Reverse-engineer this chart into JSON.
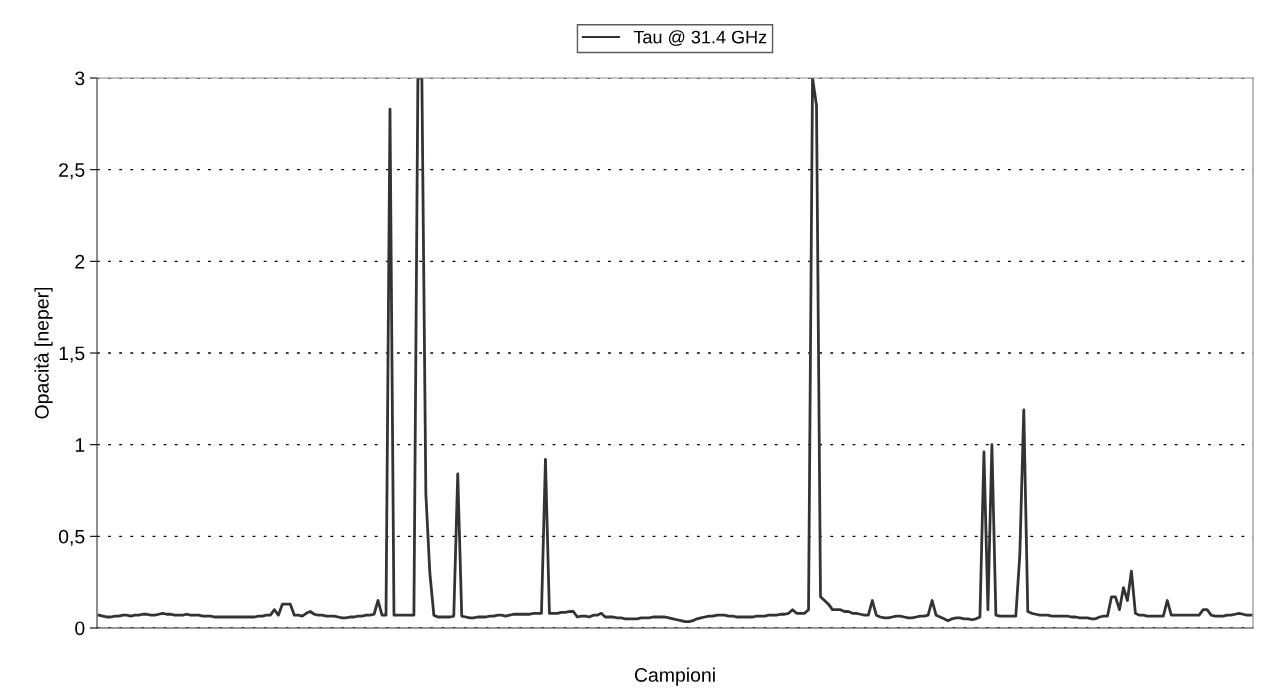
{
  "chart_data": {
    "type": "line",
    "xlabel": "Campioni",
    "ylabel": "Opacità [neper]",
    "categories": [
      null,
      null,
      null,
      null,
      null,
      null,
      null,
      null,
      null,
      null,
      null,
      null,
      null,
      null,
      null,
      null,
      null,
      null,
      null,
      null,
      null,
      null,
      null,
      null,
      null,
      null,
      null,
      null,
      null,
      null,
      null,
      null,
      null,
      null,
      null,
      null,
      null,
      null,
      null,
      null,
      null,
      null,
      null,
      null,
      null,
      null,
      null,
      null,
      null,
      null,
      null,
      null,
      null,
      null,
      null,
      null,
      null,
      null,
      null,
      null,
      null,
      null,
      null,
      null,
      null,
      null,
      null,
      null,
      null,
      null,
      null,
      null,
      null,
      null,
      null,
      null,
      null,
      null,
      null,
      null,
      null,
      null,
      null,
      null,
      null,
      null,
      null,
      null,
      null,
      null,
      null,
      null,
      null,
      null,
      null,
      null,
      null,
      null,
      null,
      null,
      null,
      null,
      null,
      null,
      null,
      null,
      null,
      null,
      null,
      null,
      null,
      null,
      null,
      null,
      null,
      null,
      null,
      null,
      null,
      null,
      null,
      null,
      null,
      null,
      null,
      null,
      null,
      null,
      null,
      null,
      null,
      null,
      null,
      null,
      null,
      null,
      null,
      null,
      null,
      null,
      null,
      null,
      null,
      null,
      null,
      null,
      null,
      null,
      null,
      null,
      null,
      null,
      null,
      null,
      null,
      null,
      null,
      null,
      null,
      null,
      null,
      null,
      null,
      null,
      null,
      null,
      null,
      null,
      null,
      null,
      null,
      null,
      null,
      null,
      null,
      null,
      null,
      null,
      null,
      null,
      null,
      null,
      null,
      null,
      null,
      null,
      null,
      null,
      null,
      null,
      null,
      null,
      null,
      null,
      null,
      null,
      null,
      null,
      null,
      null,
      null,
      null,
      null,
      null,
      null,
      null,
      null,
      null,
      null,
      null,
      null,
      null,
      null,
      null,
      null,
      null,
      null,
      null,
      null,
      null,
      null,
      null,
      null,
      null,
      null,
      null,
      null,
      null,
      null,
      null,
      null,
      null,
      null,
      null,
      null,
      null,
      null,
      null,
      null,
      null,
      null,
      null,
      null,
      null,
      null,
      null,
      null,
      null,
      null,
      null,
      null,
      null,
      null,
      null,
      null,
      null,
      null,
      null,
      null,
      null,
      null,
      null,
      null,
      null,
      null,
      null,
      null,
      null,
      null,
      null,
      null,
      null,
      null,
      null,
      null,
      null,
      null,
      null,
      null,
      null,
      null,
      null,
      null,
      null,
      null,
      null,
      null,
      null,
      null,
      null
    ],
    "series": [
      {
        "name": "Tau @ 31.4 GHz",
        "color": "#333333",
        "values": [
          0.07,
          0.065,
          0.06,
          0.06,
          0.065,
          0.065,
          0.07,
          0.07,
          0.065,
          0.07,
          0.07,
          0.075,
          0.075,
          0.07,
          0.07,
          0.075,
          0.08,
          0.075,
          0.075,
          0.07,
          0.07,
          0.07,
          0.075,
          0.07,
          0.07,
          0.07,
          0.065,
          0.065,
          0.065,
          0.06,
          0.06,
          0.06,
          0.06,
          0.06,
          0.06,
          0.06,
          0.06,
          0.06,
          0.06,
          0.06,
          0.065,
          0.065,
          0.07,
          0.07,
          0.1,
          0.07,
          0.13,
          0.13,
          0.13,
          0.07,
          0.07,
          0.065,
          0.08,
          0.09,
          0.075,
          0.07,
          0.07,
          0.065,
          0.065,
          0.065,
          0.06,
          0.055,
          0.055,
          0.06,
          0.06,
          0.065,
          0.065,
          0.07,
          0.07,
          0.075,
          0.15,
          0.07,
          0.07,
          2.83,
          0.07,
          0.07,
          0.07,
          0.07,
          0.07,
          0.07,
          3,
          3,
          0.73,
          0.3,
          0.07,
          0.06,
          0.06,
          0.06,
          0.06,
          0.065,
          0.84,
          0.065,
          0.06,
          0.055,
          0.055,
          0.06,
          0.06,
          0.06,
          0.065,
          0.065,
          0.07,
          0.07,
          0.065,
          0.07,
          0.075,
          0.075,
          0.075,
          0.075,
          0.075,
          0.08,
          0.08,
          0.08,
          0.92,
          0.08,
          0.08,
          0.08,
          0.085,
          0.085,
          0.09,
          0.09,
          0.06,
          0.065,
          0.065,
          0.06,
          0.07,
          0.07,
          0.08,
          0.06,
          0.06,
          0.06,
          0.055,
          0.055,
          0.05,
          0.05,
          0.05,
          0.05,
          0.055,
          0.055,
          0.055,
          0.06,
          0.06,
          0.06,
          0.06,
          0.055,
          0.05,
          0.045,
          0.04,
          0.035,
          0.035,
          0.04,
          0.05,
          0.055,
          0.06,
          0.065,
          0.065,
          0.07,
          0.07,
          0.07,
          0.065,
          0.065,
          0.06,
          0.06,
          0.06,
          0.06,
          0.06,
          0.065,
          0.065,
          0.065,
          0.07,
          0.07,
          0.07,
          0.075,
          0.075,
          0.08,
          0.1,
          0.08,
          0.08,
          0.08,
          0.1,
          3,
          2.85,
          0.17,
          0.15,
          0.13,
          0.1,
          0.1,
          0.1,
          0.09,
          0.09,
          0.08,
          0.08,
          0.075,
          0.07,
          0.07,
          0.15,
          0.07,
          0.06,
          0.055,
          0.055,
          0.06,
          0.065,
          0.065,
          0.06,
          0.055,
          0.055,
          0.06,
          0.065,
          0.065,
          0.07,
          0.15,
          0.07,
          0.06,
          0.05,
          0.04,
          0.05,
          0.055,
          0.055,
          0.05,
          0.05,
          0.045,
          0.05,
          0.06,
          0.96,
          0.1,
          1.0,
          0.07,
          0.065,
          0.065,
          0.065,
          0.065,
          0.065,
          0.4,
          1.19,
          0.09,
          0.08,
          0.075,
          0.07,
          0.07,
          0.07,
          0.065,
          0.065,
          0.065,
          0.065,
          0.065,
          0.06,
          0.06,
          0.055,
          0.055,
          0.055,
          0.05,
          0.05,
          0.06,
          0.065,
          0.065,
          0.17,
          0.17,
          0.1,
          0.22,
          0.15,
          0.31,
          0.08,
          0.07,
          0.07,
          0.065,
          0.065,
          0.065,
          0.065,
          0.065,
          0.15,
          0.07,
          0.07,
          0.07,
          0.07,
          0.07,
          0.07,
          0.07,
          0.07,
          0.1,
          0.1,
          0.07,
          0.065,
          0.065,
          0.065,
          0.07,
          0.07,
          0.075,
          0.08,
          0.075,
          0.07,
          0.07
        ]
      }
    ],
    "ylim": [
      0,
      3
    ],
    "yticks": [
      0,
      {
        "value": 0.5,
        "label": "0,5"
      },
      1,
      {
        "value": 1.5,
        "label": "1,5"
      },
      2,
      {
        "value": 2.5,
        "label": "2,5"
      },
      3
    ],
    "grid": "y",
    "legend": "top",
    "line_style": "solid",
    "marker": "none"
  }
}
